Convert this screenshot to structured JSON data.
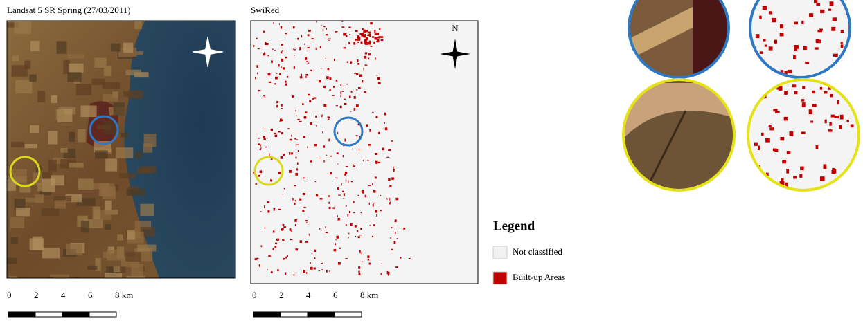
{
  "panels": [
    {
      "title": "Landsat 5 SR Spring (27/03/2011)",
      "scale_labels": [
        "0",
        "2",
        "4",
        "6",
        "8 km"
      ]
    },
    {
      "title": "SwiRed",
      "north_label": "N",
      "scale_labels": [
        "0",
        "2",
        "4",
        "6",
        "8 km"
      ]
    }
  ],
  "legend": {
    "title": "Legend",
    "items": [
      {
        "label": "Not classified",
        "color": "#f2f2f2"
      },
      {
        "label": "Built-up Areas",
        "color": "#c00000"
      }
    ]
  }
}
